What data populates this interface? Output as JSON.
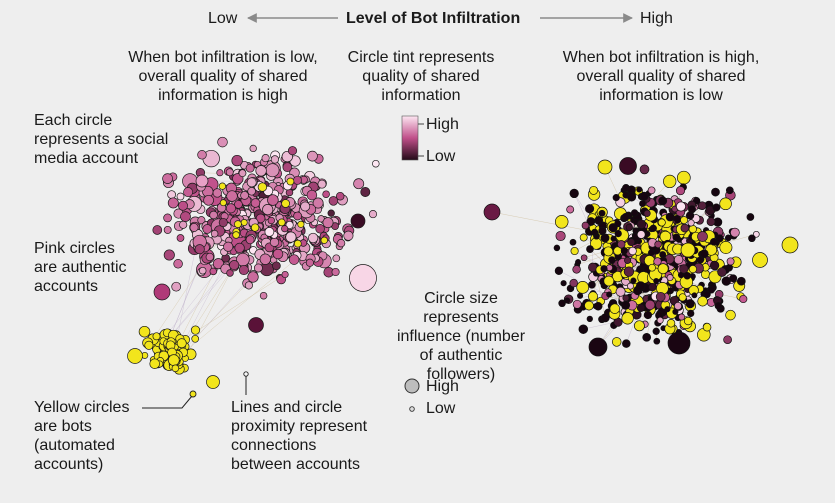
{
  "header": {
    "low": "Low",
    "title": "Level of Bot Infiltration",
    "high": "High"
  },
  "annotations": {
    "low_quality_line1": "When bot infiltration is low,",
    "low_quality_line2": "overall quality of shared",
    "low_quality_line3": "information is high",
    "tint_line1": "Circle tint represents",
    "tint_line2": "quality of shared",
    "tint_line3": "information",
    "high_quality_line1": "When bot infiltration is high,",
    "high_quality_line2": "overall quality of shared",
    "high_quality_line3": "information is low",
    "circle_line1": "Each circle",
    "circle_line2": "represents a social",
    "circle_line3": "media account",
    "pink_line1": "Pink circles",
    "pink_line2": "are authentic",
    "pink_line3": "accounts",
    "yellow_line1": "Yellow circles",
    "yellow_line2": "are bots",
    "yellow_line3": "(automated",
    "yellow_line4": "accounts)",
    "lines_line1": "Lines and circle",
    "lines_line2": "proximity represent",
    "lines_line3": "connections",
    "lines_line4": "between accounts",
    "size_line1": "Circle size",
    "size_line2": "represents",
    "size_line3": "influence (number",
    "size_line4": "of authentic followers)"
  },
  "legend": {
    "tint_high": "High",
    "tint_low": "Low",
    "size_high": "High",
    "size_low": "Low"
  },
  "colors": {
    "background": "#eeeeee",
    "bot_yellow": "#f2e51c",
    "quality_high": "#fbe3f0",
    "quality_mid": "#c0508a",
    "quality_low": "#230a18",
    "arrow": "#8a8a8a"
  }
}
